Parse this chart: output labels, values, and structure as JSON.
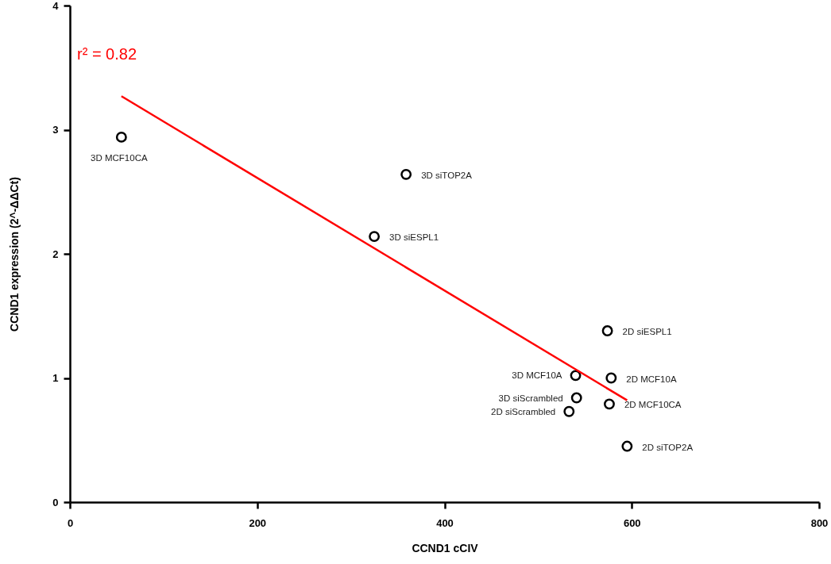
{
  "chart_data": {
    "type": "scatter",
    "xlabel": "CCND1 cCIV",
    "ylabel": "CCND1 expression (2^-ΔΔCt)",
    "xlim": [
      0,
      800
    ],
    "ylim": [
      0,
      4
    ],
    "xticks": [
      0,
      200,
      400,
      600,
      800
    ],
    "yticks": [
      0,
      1,
      2,
      3,
      4
    ],
    "series": [
      {
        "marker": "circle",
        "color": "#000000",
        "x": [
          55,
          359,
          325,
          574,
          540,
          578,
          541,
          576,
          533,
          595
        ],
        "values": [
          2.94,
          2.64,
          2.14,
          1.38,
          1.02,
          1.0,
          0.84,
          0.79,
          0.73,
          0.45
        ]
      },
      {
        "type": "line",
        "color": "#ff0000",
        "x": [
          55,
          595
        ],
        "values": [
          3.27,
          0.82
        ]
      }
    ],
    "annotations": [
      "r² = 0.82",
      {
        "text": "3D MCF10CA",
        "x": 55,
        "y": 2.94
      },
      {
        "text": "3D siTOP2A",
        "x": 359,
        "y": 2.64
      },
      {
        "text": "3D siESPL1",
        "x": 325,
        "y": 2.14
      },
      {
        "text": "2D siESPL1",
        "x": 574,
        "y": 1.38
      },
      {
        "text": "3D MCF10A",
        "x": 540,
        "y": 1.02
      },
      {
        "text": "2D MCF10A",
        "x": 578,
        "y": 1.0
      },
      {
        "text": "3D siScrambled",
        "x": 541,
        "y": 0.84
      },
      {
        "text": "2D MCF10CA",
        "x": 576,
        "y": 0.79
      },
      {
        "text": "2D siScrambled",
        "x": 533,
        "y": 0.73
      },
      {
        "text": "2D siTOP2A",
        "x": 595,
        "y": 0.45
      }
    ]
  }
}
